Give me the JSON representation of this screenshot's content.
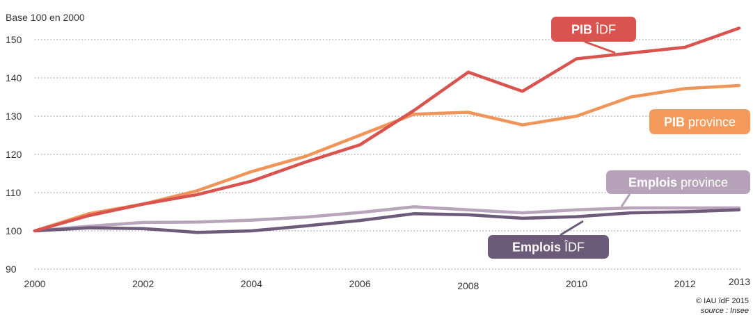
{
  "chart_data": {
    "type": "line",
    "ylabel": "Base 100 en 2000",
    "ylim": [
      90,
      150
    ],
    "yticks": [
      90,
      100,
      110,
      120,
      130,
      140,
      150
    ],
    "xlim": [
      2000,
      2013
    ],
    "xticks": [
      2000,
      2002,
      2004,
      2006,
      2008,
      2010,
      2012,
      2013
    ],
    "grid": "horizontal dotted",
    "x": [
      2000,
      2001,
      2002,
      2003,
      2004,
      2005,
      2006,
      2007,
      2008,
      2009,
      2010,
      2011,
      2012,
      2013
    ],
    "series": [
      {
        "name": "PIB ÎDF",
        "label_bold": "PIB",
        "label_rest": " ÎDF",
        "color": "#d9534f",
        "label_color": "#d9534f",
        "values": [
          100,
          104,
          107,
          109.5,
          113,
          118,
          122.5,
          131.5,
          141.5,
          136.5,
          145,
          146.5,
          148,
          153
        ]
      },
      {
        "name": "PIB province",
        "label_bold": "PIB",
        "label_rest": " province",
        "color": "#f0955a",
        "label_color": "#f49a5a",
        "values": [
          100,
          104.5,
          107,
          110.5,
          115.5,
          119.5,
          125,
          130.5,
          131,
          127.7,
          130,
          135,
          137.2,
          138
        ]
      },
      {
        "name": "Emplois province",
        "label_bold": "Emplois",
        "label_rest": " province",
        "color": "#b9a5bb",
        "label_color": "#b6a3b9",
        "values": [
          100,
          101.2,
          102.2,
          102.3,
          102.8,
          103.6,
          104.8,
          106.3,
          105.5,
          104.7,
          105.5,
          106,
          106,
          106
        ]
      },
      {
        "name": "Emplois ÎDF",
        "label_bold": "Emplois",
        "label_rest": " ÎDF",
        "color": "#6e5b7a",
        "label_color": "#6b5a78",
        "values": [
          100,
          100.8,
          100.6,
          99.6,
          100,
          101.3,
          102.7,
          104.5,
          104.2,
          103.3,
          103.7,
          104.7,
          105,
          105.5
        ]
      }
    ],
    "credits": [
      "© IAU îdF 2015",
      "source : Insee"
    ]
  }
}
